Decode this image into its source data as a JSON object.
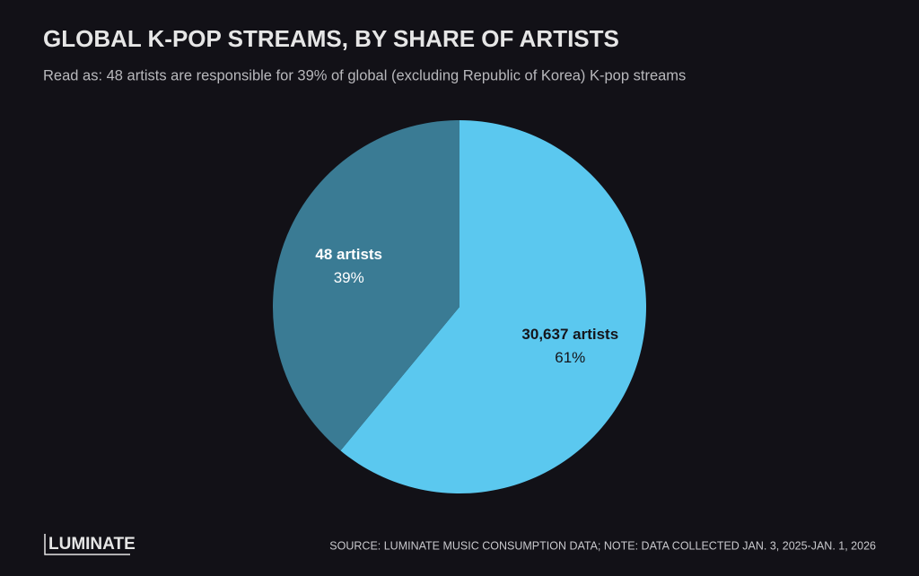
{
  "chart_data": {
    "type": "pie",
    "title": "GLOBAL K-POP STREAMS, BY SHARE OF ARTISTS",
    "subtitle": "Read as: 48 artists are responsible for 39% of global (excluding Republic of Korea) K-pop streams",
    "categories": [
      "30,637 artists",
      "48 artists"
    ],
    "values": [
      61,
      39
    ],
    "value_labels": [
      "61%",
      "39%"
    ],
    "colors": [
      "#5bc8ef",
      "#3a7b94"
    ],
    "label_colors": [
      "#15151b",
      "#ffffff"
    ],
    "source": "SOURCE: LUMINATE MUSIC CONSUMPTION DATA; NOTE: DATA COLLECTED JAN. 3, 2025-JAN. 1, 2026",
    "logo": "LUMINATE"
  }
}
